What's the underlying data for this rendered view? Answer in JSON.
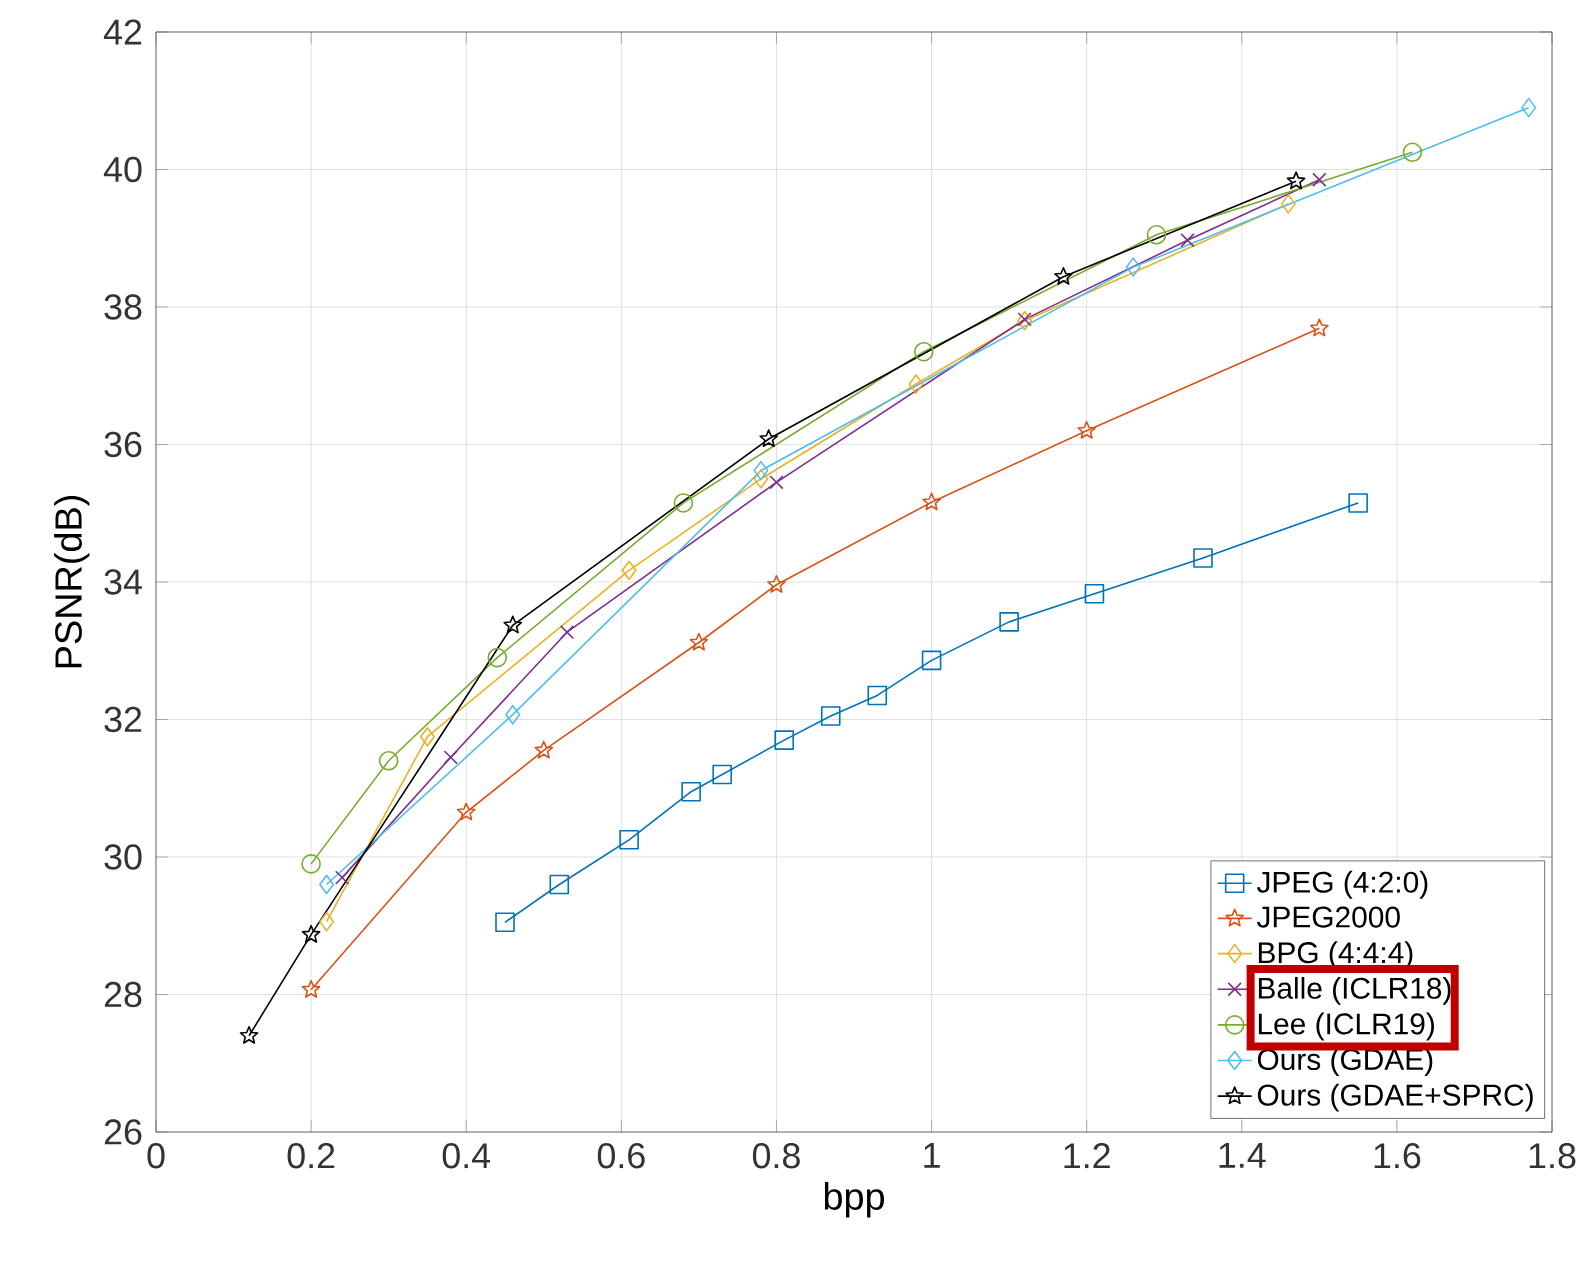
{
  "chart_data": {
    "type": "line",
    "xlabel": "bpp",
    "ylabel": "PSNR(dB)",
    "xlim": [
      0,
      1.8
    ],
    "ylim": [
      26,
      42
    ],
    "xticks": [
      0,
      0.2,
      0.4,
      0.6,
      0.8,
      1,
      1.2,
      1.4,
      1.6,
      1.8
    ],
    "yticks": [
      26,
      28,
      30,
      32,
      34,
      36,
      38,
      40,
      42
    ],
    "grid": true,
    "legend": "bottom right",
    "series": [
      {
        "name": "JPEG (4:2:0)",
        "color": "#0072bd",
        "marker": "square",
        "x": [
          0.45,
          0.52,
          0.61,
          0.69,
          0.73,
          0.81,
          0.87,
          0.93,
          1.0,
          1.1,
          1.21,
          1.35,
          1.55
        ],
        "values": [
          29.05,
          29.6,
          30.25,
          30.95,
          31.2,
          31.7,
          32.05,
          32.35,
          32.86,
          33.42,
          33.83,
          34.35,
          35.15
        ]
      },
      {
        "name": "JPEG2000",
        "color": "#d95319",
        "marker": "star",
        "x": [
          0.2,
          0.4,
          0.5,
          0.7,
          0.8,
          1.0,
          1.2,
          1.5
        ],
        "values": [
          28.07,
          30.65,
          31.55,
          33.12,
          33.96,
          35.16,
          36.2,
          37.69
        ]
      },
      {
        "name": "BPG (4:4:4)",
        "color": "#edb120",
        "marker": "diamond",
        "x": [
          0.22,
          0.35,
          0.61,
          0.78,
          0.98,
          1.12,
          1.46
        ],
        "values": [
          29.06,
          31.75,
          34.17,
          35.5,
          36.88,
          37.8,
          39.5
        ]
      },
      {
        "name": "Balle (ICLR18)",
        "color": "#7e2f8e",
        "marker": "cross",
        "x": [
          0.24,
          0.38,
          0.53,
          0.8,
          1.12,
          1.33,
          1.5
        ],
        "values": [
          29.7,
          31.45,
          33.27,
          35.45,
          37.82,
          38.97,
          39.85
        ]
      },
      {
        "name": "Lee (ICLR19)",
        "color": "#77ac30",
        "marker": "circle",
        "x": [
          0.2,
          0.3,
          0.44,
          0.68,
          0.99,
          1.29,
          1.62
        ],
        "values": [
          29.9,
          31.4,
          32.9,
          35.15,
          37.35,
          39.05,
          40.25
        ]
      },
      {
        "name": "Ours (GDAE)",
        "color": "#4dbeee",
        "marker": "diamond",
        "x": [
          0.22,
          0.46,
          0.78,
          1.26,
          1.77
        ],
        "values": [
          29.6,
          32.07,
          35.62,
          38.58,
          40.9
        ]
      },
      {
        "name": "Ours (GDAE+SPRC)",
        "color": "#000000",
        "marker": "star",
        "x": [
          0.12,
          0.2,
          0.46,
          0.79,
          1.17,
          1.47
        ],
        "values": [
          27.4,
          28.87,
          33.37,
          36.08,
          38.44,
          39.83
        ]
      }
    ]
  }
}
